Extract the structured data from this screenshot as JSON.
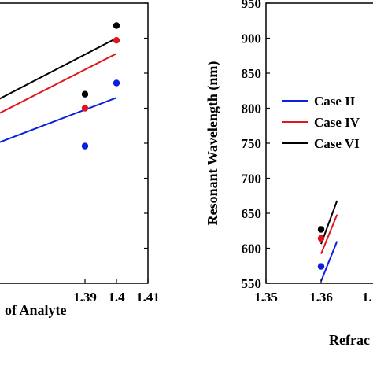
{
  "chart_data": [
    {
      "type": "scatter",
      "xlabel": "of Analyte",
      "ylabel": "",
      "xlim": [
        1.355,
        1.41
      ],
      "ylim": [
        550,
        950
      ],
      "xticks": [
        1.39,
        1.4,
        1.41
      ],
      "xtick_labels": [
        "1.39",
        "1.4",
        "1.41"
      ],
      "grid": false,
      "series": [
        {
          "name": "Case II",
          "color": "#0a1fe0",
          "points": [
            [
              1.39,
              746
            ],
            [
              1.4,
              836
            ]
          ],
          "fit": [
            [
              1.355,
              738
            ],
            [
              1.4,
              815
            ]
          ]
        },
        {
          "name": "Case IV",
          "color": "#e0161c",
          "points": [
            [
              1.39,
              800
            ],
            [
              1.4,
              897
            ]
          ],
          "fit": [
            [
              1.355,
              775
            ],
            [
              1.4,
              878
            ]
          ]
        },
        {
          "name": "Case VI",
          "color": "#000000",
          "points": [
            [
              1.39,
              820
            ],
            [
              1.4,
              918
            ]
          ],
          "fit": [
            [
              1.355,
              795
            ],
            [
              1.4,
              900
            ]
          ]
        }
      ]
    },
    {
      "type": "scatter",
      "xlabel": "Refrac",
      "ylabel": "Resonant Wavelength (nm)",
      "xlim": [
        1.35,
        1.39
      ],
      "ylim": [
        550,
        950
      ],
      "xticks": [
        1.35,
        1.36
      ],
      "xtick_labels": [
        "1.35",
        "1.36"
      ],
      "yticks": [
        550,
        600,
        650,
        700,
        750,
        800,
        850,
        900,
        950
      ],
      "ytick_labels": [
        "550",
        "600",
        "650",
        "700",
        "750",
        "800",
        "850",
        "900",
        "950"
      ],
      "extra_tick_text": "1.",
      "grid": false,
      "legend": {
        "position": "right",
        "entries": [
          "Case II",
          "Case IV",
          "Case VI"
        ]
      },
      "series": [
        {
          "name": "Case II",
          "color": "#0a1fe0",
          "points": [
            [
              1.36,
              574
            ]
          ],
          "fit": [
            [
              1.36,
              553
            ],
            [
              1.3629,
              610
            ]
          ]
        },
        {
          "name": "Case IV",
          "color": "#e0161c",
          "points": [
            [
              1.36,
              614
            ]
          ],
          "fit": [
            [
              1.36,
              592
            ],
            [
              1.3629,
              648
            ]
          ]
        },
        {
          "name": "Case VI",
          "color": "#000000",
          "points": [
            [
              1.36,
              627
            ]
          ],
          "fit": [
            [
              1.36,
              606
            ],
            [
              1.3629,
              668
            ]
          ]
        }
      ]
    }
  ]
}
